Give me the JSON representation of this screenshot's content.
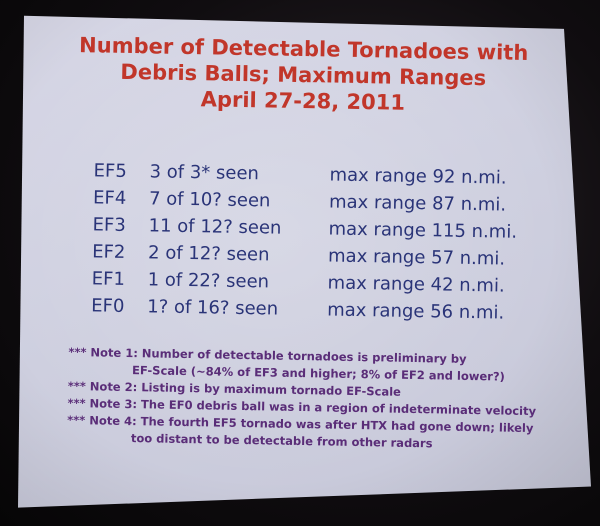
{
  "slide": {
    "title_lines": [
      "Number of Detectable Tornadoes with",
      "Debris Balls; Maximum Ranges",
      "April 27-28, 2011"
    ],
    "rows": [
      {
        "scale": "EF5",
        "seen": "3 of 3* seen",
        "range": "max range 92 n.mi."
      },
      {
        "scale": "EF4",
        "seen": "7 of 10? seen",
        "range": "max range 87 n.mi."
      },
      {
        "scale": "EF3",
        "seen": "11 of 12? seen",
        "range": "max range 115 n.mi."
      },
      {
        "scale": "EF2",
        "seen": "2 of 12? seen",
        "range": "max range 57 n.mi."
      },
      {
        "scale": "EF1",
        "seen": "1 of 22? seen",
        "range": "max range 42 n.mi."
      },
      {
        "scale": "EF0",
        "seen": "1?  of 16? seen",
        "range": "max range 56 n.mi."
      }
    ],
    "notes": [
      "*** Note 1:  Number of detectable tornadoes is preliminary by",
      "EF-Scale (~84% of EF3 and higher; 8% of EF2 and lower?)",
      "*** Note 2:  Listing is by maximum tornado EF-Scale",
      "*** Note 3:  The EF0 debris ball was in a region of indeterminate velocity",
      "*** Note 4:  The fourth EF5 tornado was after HTX had gone down;  likely",
      "too distant to be detectable from other radars"
    ],
    "colors": {
      "title": "#c1362a",
      "rows": "#2a3478",
      "notes": "#5a2d78",
      "slide_background": "#d0d1e1"
    }
  }
}
